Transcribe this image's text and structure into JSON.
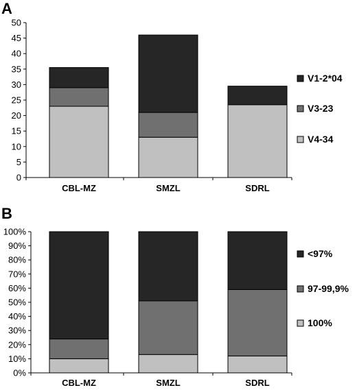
{
  "chart_data": [
    {
      "panel": "A",
      "type": "bar",
      "stacked": true,
      "categories": [
        "CBL-MZ",
        "SMZL",
        "SDRL"
      ],
      "series": [
        {
          "name": "V4-34",
          "values": [
            23,
            13,
            23.5
          ],
          "color": "#c0c0c0"
        },
        {
          "name": "V3-23",
          "values": [
            6,
            8,
            0
          ],
          "color": "#707070"
        },
        {
          "name": "V1-2*04",
          "values": [
            6.5,
            25,
            6
          ],
          "color": "#262626"
        }
      ],
      "ylim": [
        0,
        50
      ],
      "yticks": [
        0,
        5,
        10,
        15,
        20,
        25,
        30,
        35,
        40,
        45,
        50
      ],
      "legend": "right"
    },
    {
      "panel": "B",
      "type": "bar",
      "stacked": true,
      "categories": [
        "CBL-MZ",
        "SMZL",
        "SDRL"
      ],
      "series": [
        {
          "name": "100%",
          "values": [
            10,
            13,
            12
          ],
          "color": "#c0c0c0"
        },
        {
          "name": "97-99,9%",
          "values": [
            14,
            38,
            47
          ],
          "color": "#707070"
        },
        {
          "name": "<97%",
          "values": [
            76,
            49,
            41
          ],
          "color": "#262626"
        }
      ],
      "ylim": [
        0,
        100
      ],
      "yticks": [
        "0%",
        "10%",
        "20%",
        "30%",
        "40%",
        "50%",
        "60%",
        "70%",
        "80%",
        "90%",
        "100%"
      ],
      "legend": "right"
    }
  ]
}
